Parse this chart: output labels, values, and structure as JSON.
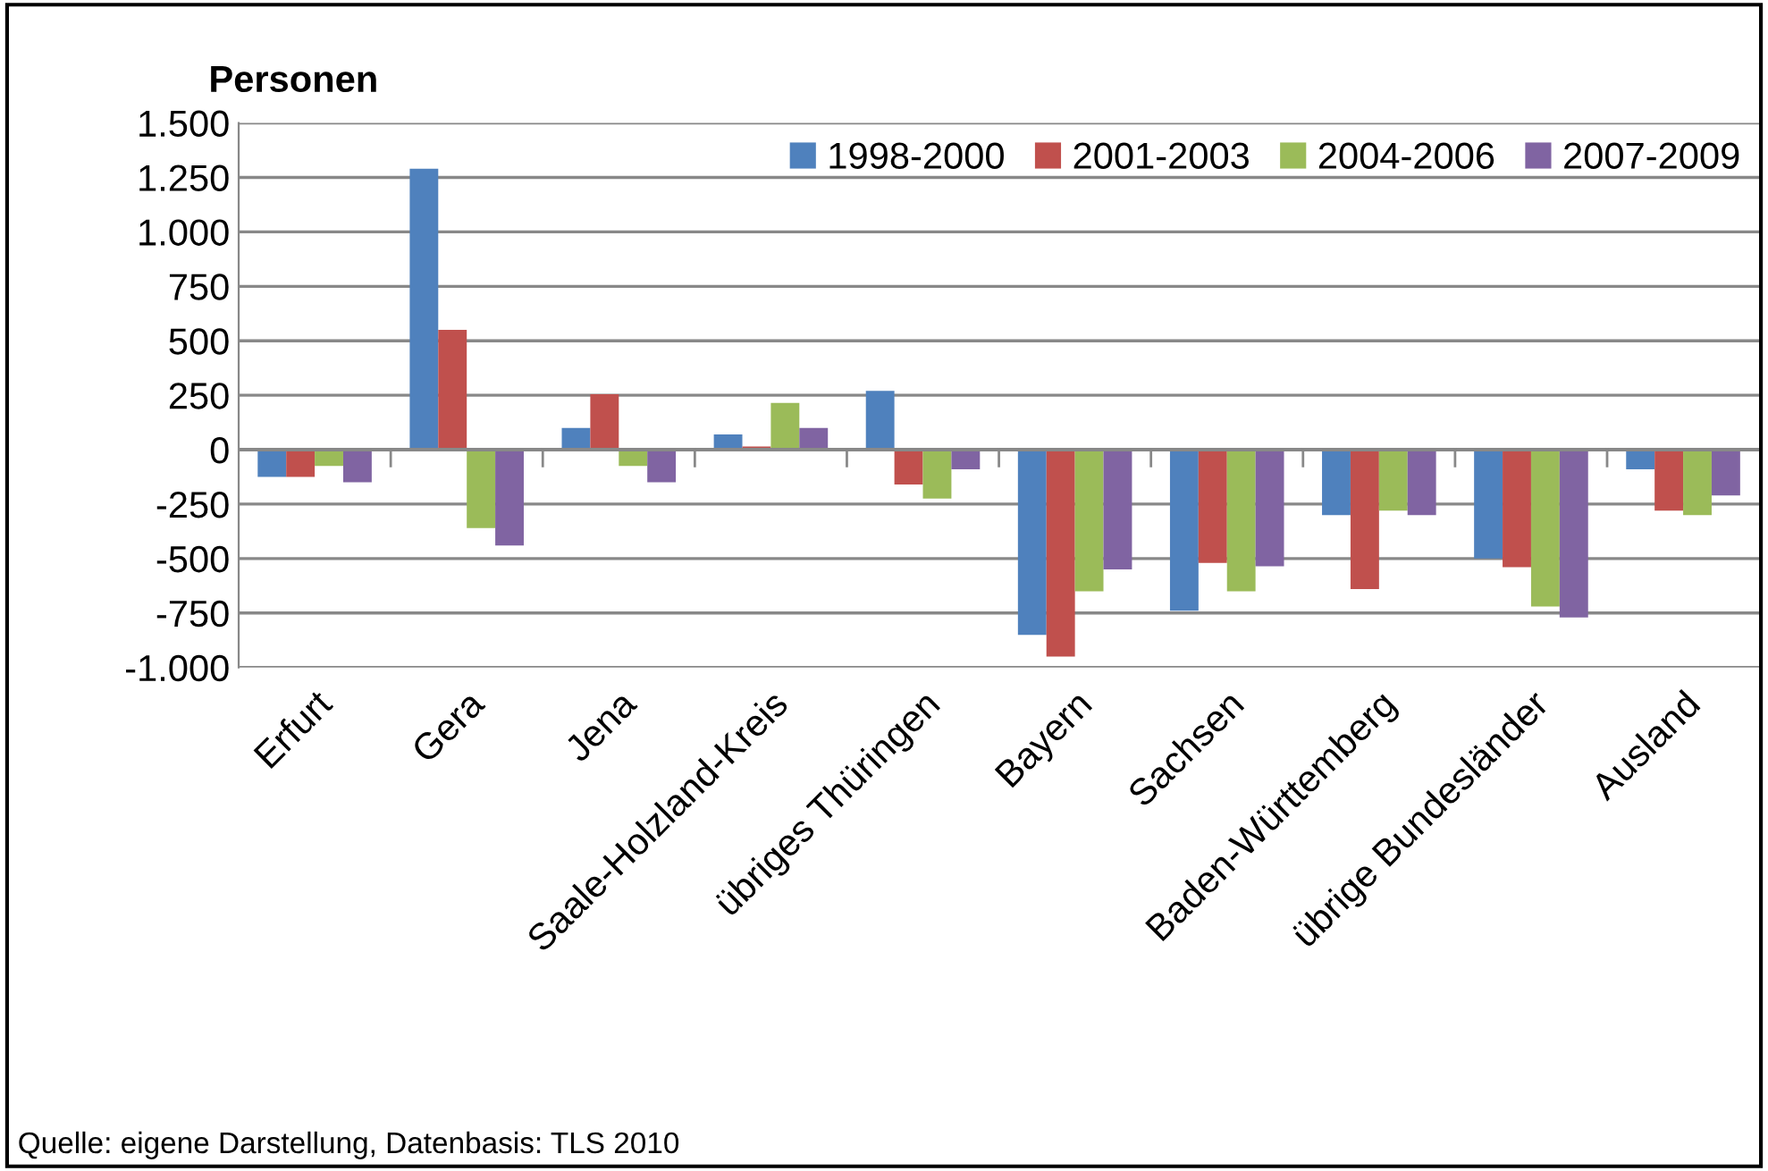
{
  "chart_data": {
    "type": "bar",
    "ylabel": "Personen",
    "categories": [
      "Erfurt",
      "Gera",
      "Jena",
      "Saale-Holzland-Kreis",
      "übriges Thüringen",
      "Bayern",
      "Sachsen",
      "Baden-Württemberg",
      "übrige Bundesländer",
      "Ausland"
    ],
    "series": [
      {
        "name": "1998-2000",
        "color": "#4f81bd",
        "values": [
          -125,
          1290,
          100,
          70,
          270,
          -850,
          -740,
          -300,
          -500,
          -90
        ]
      },
      {
        "name": "2001-2003",
        "color": "#c0504d",
        "values": [
          -125,
          550,
          255,
          15,
          -160,
          -950,
          -520,
          -640,
          -540,
          -280
        ]
      },
      {
        "name": "2004-2006",
        "color": "#9bbb59",
        "values": [
          -75,
          -360,
          -75,
          215,
          -225,
          -650,
          -650,
          -280,
          -720,
          -300
        ]
      },
      {
        "name": "2007-2009",
        "color": "#8064a2",
        "values": [
          -150,
          -440,
          -150,
          100,
          -90,
          -550,
          -535,
          -300,
          -770,
          -210
        ]
      }
    ],
    "ylim": [
      -1000,
      1500
    ],
    "yticks": [
      {
        "value": -1000,
        "label": "-1.000"
      },
      {
        "value": -750,
        "label": "-750"
      },
      {
        "value": -500,
        "label": "-500"
      },
      {
        "value": -250,
        "label": "-250"
      },
      0,
      250,
      500,
      750,
      {
        "value": 1000,
        "label": "1.000"
      },
      {
        "value": 1250,
        "label": "1.250"
      },
      {
        "value": 1500,
        "label": "1.500"
      }
    ],
    "grid": "y",
    "legend": "top right",
    "annotations": [
      "Quelle: eigene Darstellung, Datenbasis: TLS 2010"
    ]
  }
}
